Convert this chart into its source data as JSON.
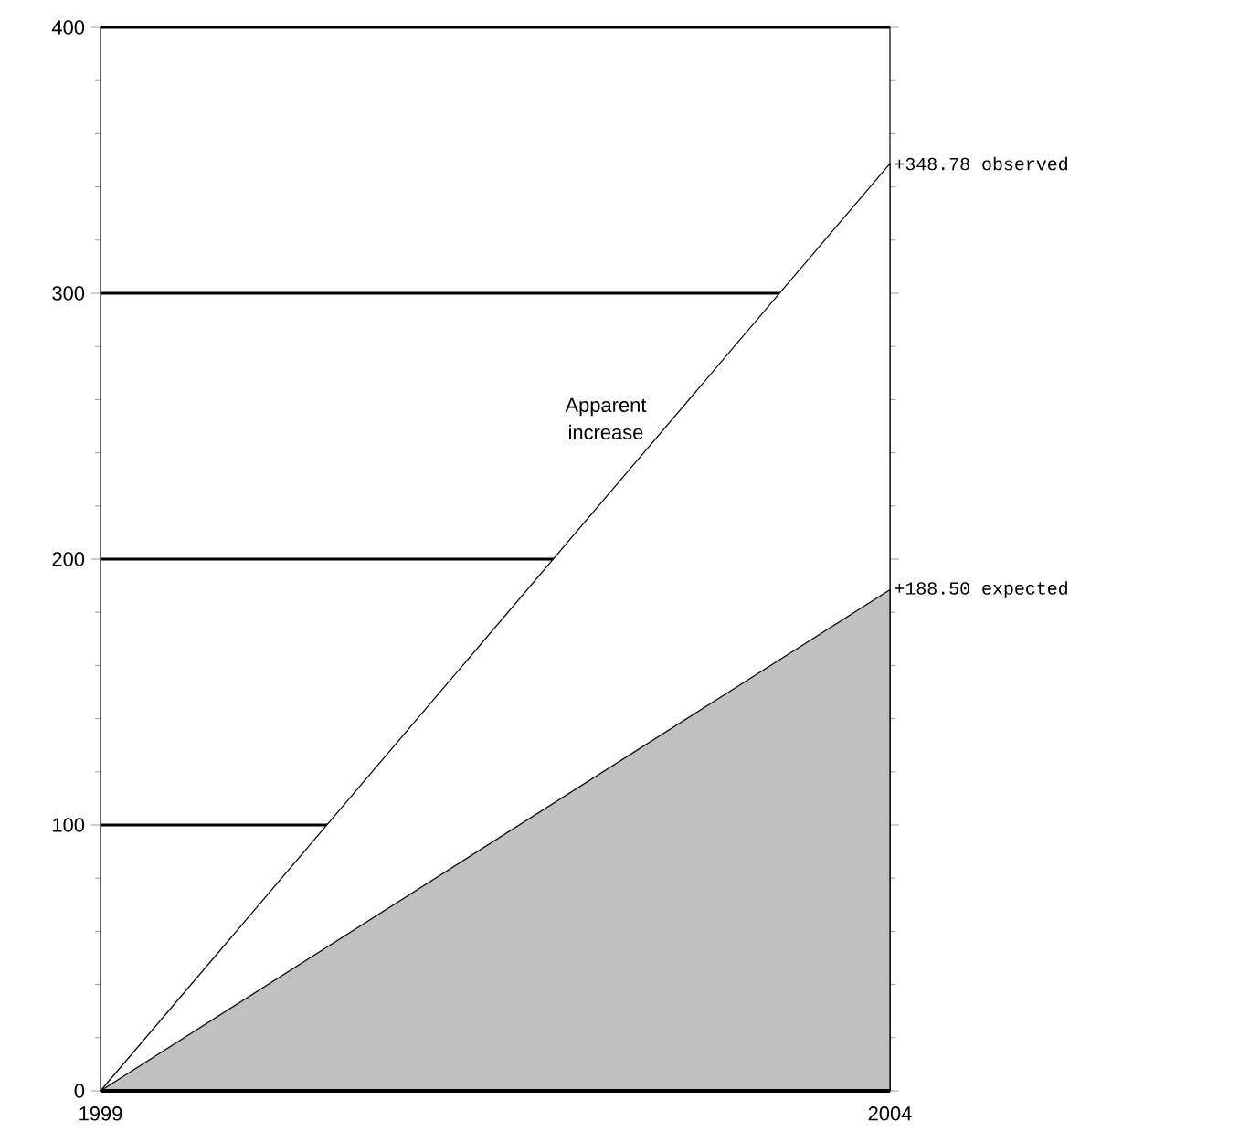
{
  "chart_data": {
    "type": "area",
    "x": [
      1999,
      2004
    ],
    "xlim": [
      1999,
      2004
    ],
    "xticks": [
      1999,
      2004
    ],
    "ylim": [
      0,
      400
    ],
    "yticks": [
      0,
      100,
      200,
      300,
      400
    ],
    "grid": "y",
    "series": [
      {
        "color": "#ffffff",
        "values": [
          0,
          348.78
        ]
      },
      {
        "color": "#c0c0c0",
        "values": [
          0,
          188.5
        ]
      }
    ],
    "annotations": [
      {
        "text": "+348.78 observed",
        "x": 2004,
        "y": 348.78
      },
      {
        "text": "+188.50 expected",
        "x": 2004,
        "y": 188.5
      },
      "Apparent increase"
    ]
  }
}
